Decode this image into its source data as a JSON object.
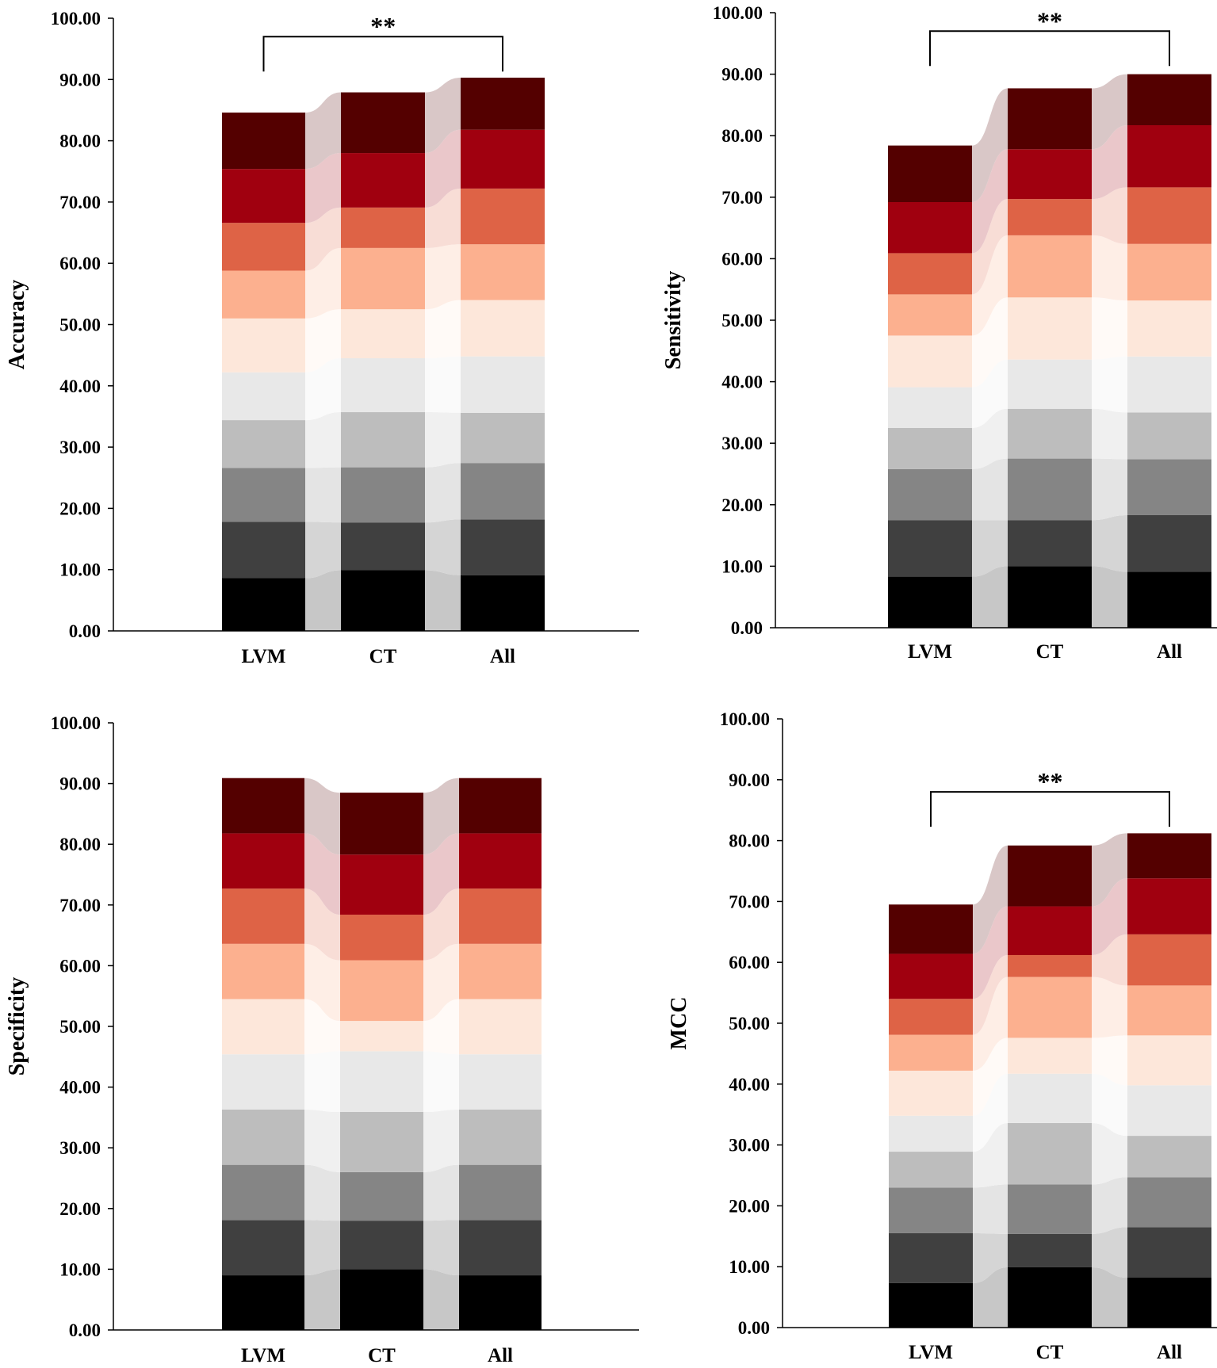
{
  "palette": [
    "#000000",
    "#404040",
    "#858585",
    "#bdbdbd",
    "#e8e8e8",
    "#fde7da",
    "#fcb08f",
    "#de6346",
    "#a0000f",
    "#540000"
  ],
  "chart_data": [
    {
      "type": "bar",
      "stacked": true,
      "ylabel": "Accuracy",
      "ylim": [
        0,
        100
      ],
      "yticks": [
        "0.00",
        "10.00",
        "20.00",
        "30.00",
        "40.00",
        "50.00",
        "60.00",
        "70.00",
        "80.00",
        "90.00",
        "100.00"
      ],
      "categories": [
        "LVM",
        "CT",
        "All"
      ],
      "segments": [
        [
          8.6,
          9.2,
          8.8,
          7.8,
          7.8,
          8.8,
          7.8,
          7.8,
          8.8,
          9.2
        ],
        [
          9.9,
          7.8,
          9.0,
          9.0,
          8.8,
          8.0,
          10.0,
          6.6,
          8.9,
          9.9
        ],
        [
          9.1,
          9.1,
          9.2,
          8.2,
          9.2,
          9.2,
          9.1,
          9.1,
          9.6,
          8.5
        ]
      ],
      "significance": {
        "from": "LVM",
        "to": "All",
        "label": "**",
        "y": 97
      }
    },
    {
      "type": "bar",
      "stacked": true,
      "ylabel": "Sensitivity",
      "ylim": [
        0,
        100
      ],
      "yticks": [
        "0.00",
        "10.00",
        "20.00",
        "30.00",
        "40.00",
        "50.00",
        "60.00",
        "70.00",
        "80.00",
        "90.00",
        "100.00"
      ],
      "categories": [
        "LVM",
        "CT",
        "All"
      ],
      "segments": [
        [
          8.3,
          9.2,
          8.3,
          6.7,
          6.6,
          8.4,
          6.7,
          6.7,
          8.3,
          9.2
        ],
        [
          10.0,
          7.5,
          10.0,
          8.1,
          8.0,
          10.1,
          10.1,
          5.9,
          8.1,
          9.9
        ],
        [
          9.1,
          9.2,
          9.1,
          7.6,
          9.1,
          9.1,
          9.2,
          9.2,
          10.1,
          8.3
        ]
      ],
      "significance": {
        "from": "LVM",
        "to": "All",
        "label": "**",
        "y": 97
      }
    },
    {
      "type": "bar",
      "stacked": true,
      "ylabel": "Specificity",
      "ylim": [
        0,
        100
      ],
      "yticks": [
        "0.00",
        "10.00",
        "20.00",
        "30.00",
        "40.00",
        "50.00",
        "60.00",
        "70.00",
        "80.00",
        "90.00",
        "100.00"
      ],
      "categories": [
        "LVM",
        "CT",
        "All"
      ],
      "segments": [
        [
          9.0,
          9.1,
          9.1,
          9.1,
          9.1,
          9.1,
          9.1,
          9.1,
          9.1,
          9.1
        ],
        [
          10.0,
          8.0,
          8.0,
          9.9,
          10.0,
          5.0,
          10.0,
          7.5,
          9.9,
          10.2
        ],
        [
          9.0,
          9.1,
          9.1,
          9.1,
          9.1,
          9.1,
          9.1,
          9.1,
          9.1,
          9.1
        ]
      ]
    },
    {
      "type": "bar",
      "stacked": true,
      "ylabel": "MCC",
      "ylim": [
        0,
        100
      ],
      "yticks": [
        "0.00",
        "10.00",
        "20.00",
        "30.00",
        "40.00",
        "50.00",
        "60.00",
        "70.00",
        "80.00",
        "90.00",
        "100.00"
      ],
      "categories": [
        "LVM",
        "CT",
        "All"
      ],
      "segments": [
        [
          7.3,
          8.2,
          7.5,
          5.9,
          5.9,
          7.4,
          5.9,
          5.9,
          7.4,
          8.1
        ],
        [
          9.9,
          5.5,
          8.1,
          10.1,
          8.1,
          5.9,
          10.0,
          3.6,
          8.0,
          10.0
        ],
        [
          8.2,
          8.3,
          8.2,
          6.8,
          8.3,
          8.2,
          8.2,
          8.4,
          9.2,
          7.4
        ]
      ],
      "significance": {
        "from": "LVM",
        "to": "All",
        "label": "**",
        "y": 88
      }
    }
  ]
}
